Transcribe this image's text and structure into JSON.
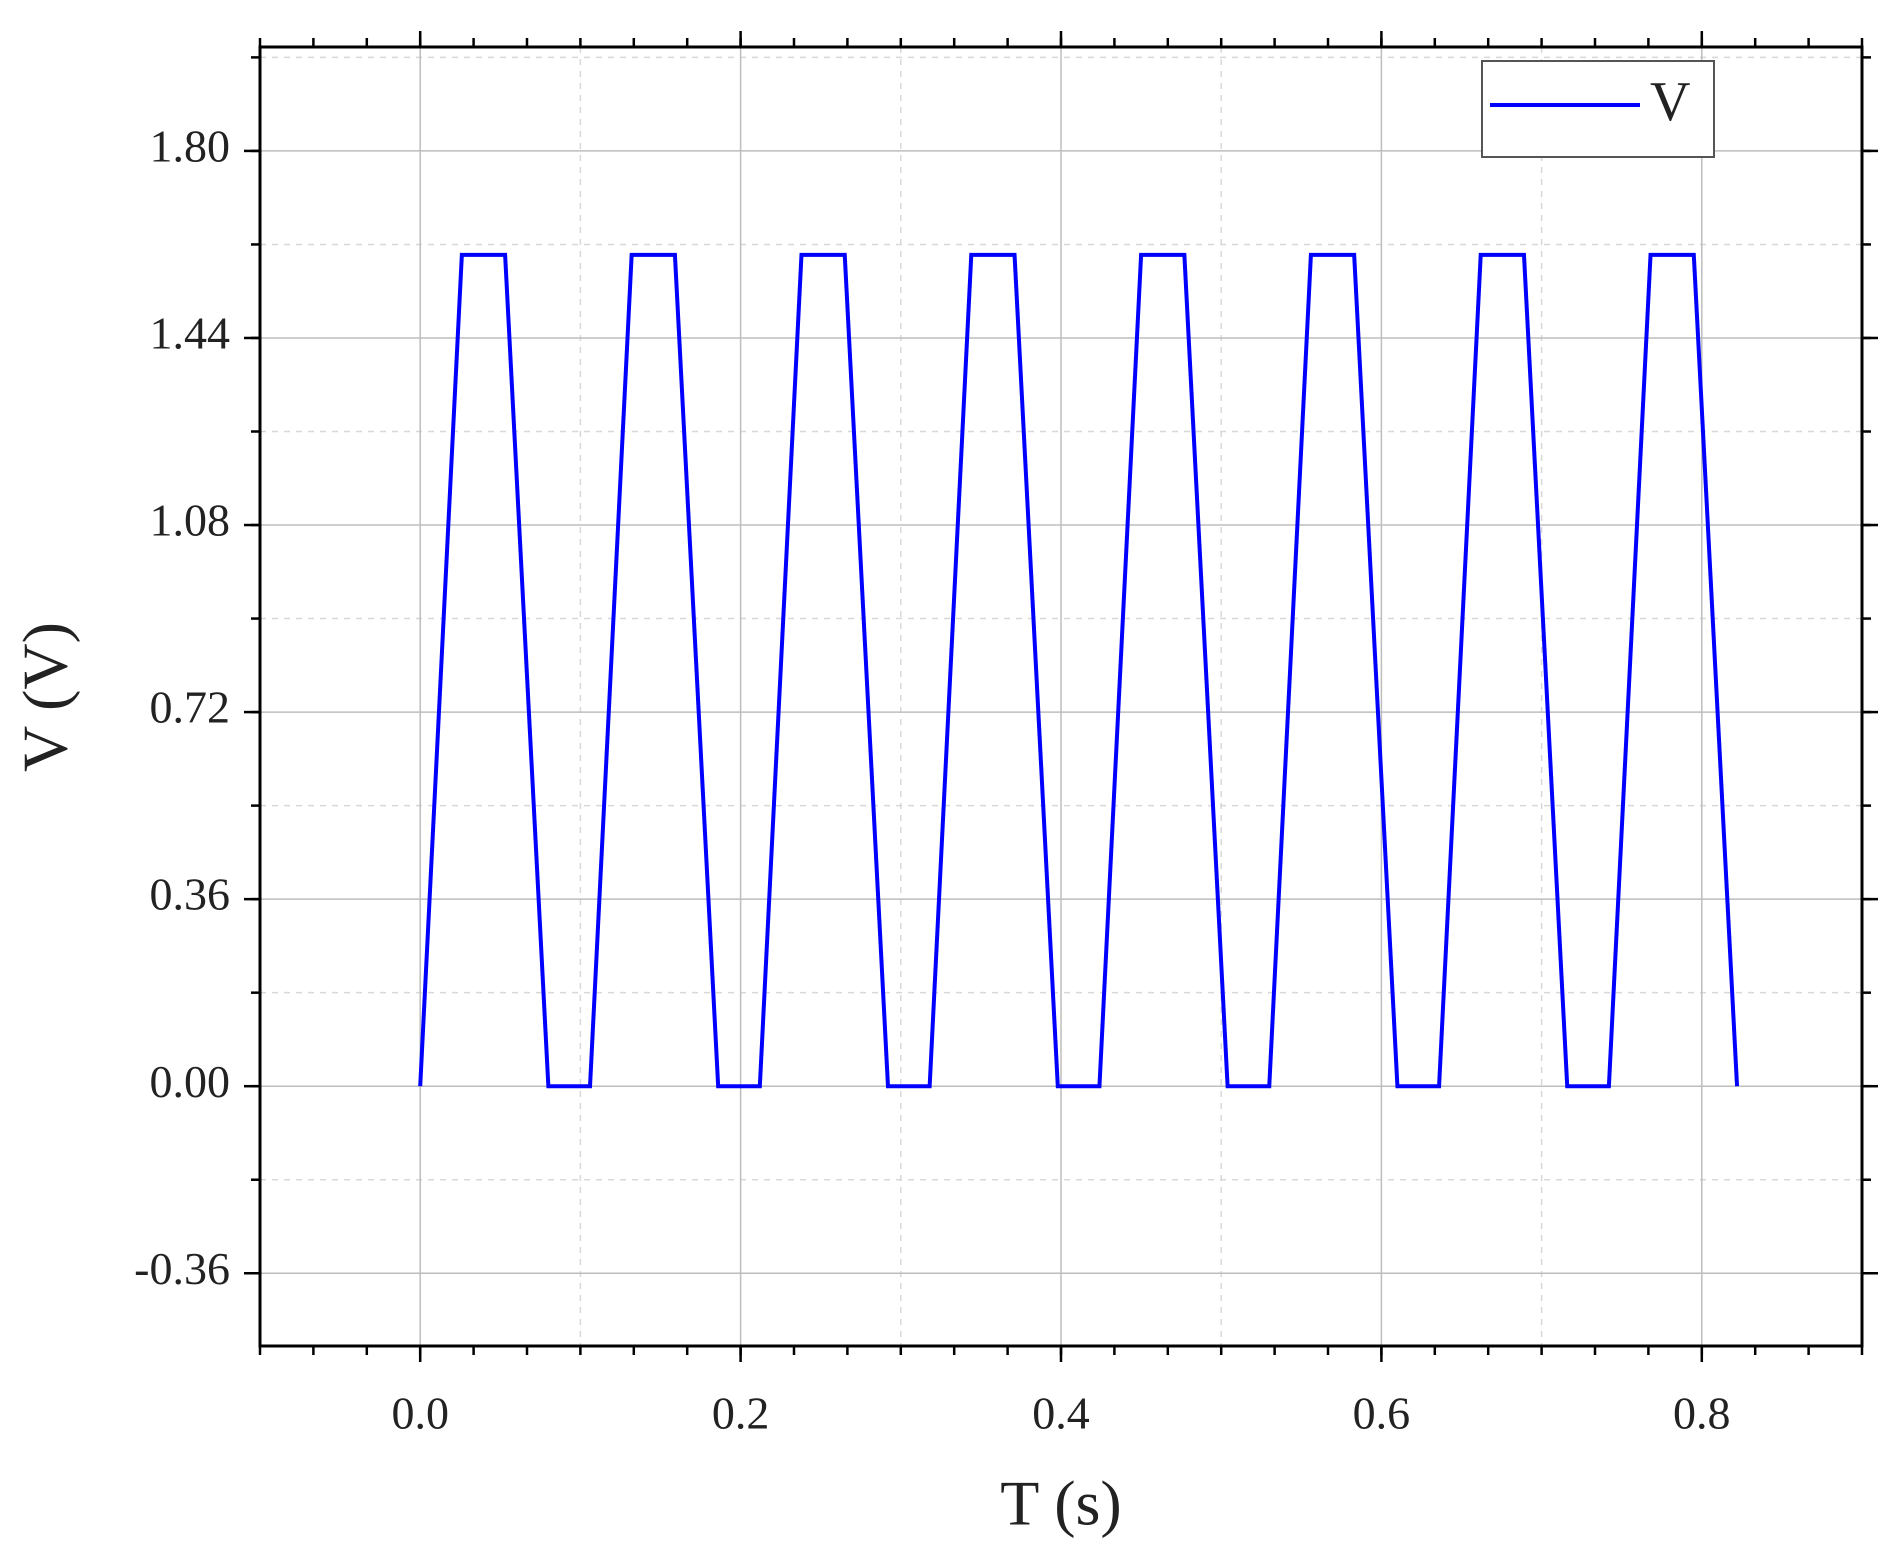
{
  "chart_data": {
    "type": "line",
    "xlabel": "T (s)",
    "ylabel": "V (V)",
    "x": [
      0,
      0.026,
      0.053,
      0.08,
      0.106,
      0.132,
      0.159,
      0.186,
      0.212,
      0.238,
      0.265,
      0.292,
      0.318,
      0.344,
      0.371,
      0.398,
      0.424,
      0.45,
      0.477,
      0.504,
      0.53,
      0.556,
      0.583,
      0.61,
      0.636,
      0.662,
      0.689,
      0.716,
      0.742,
      0.768,
      0.795,
      0.822
    ],
    "series": [
      {
        "name": "V",
        "color": "#0000ff",
        "values": [
          0,
          1.6,
          1.6,
          0,
          0,
          1.6,
          1.6,
          0,
          0,
          1.6,
          1.6,
          0,
          0,
          1.6,
          1.6,
          0,
          0,
          1.6,
          1.6,
          0,
          0,
          1.6,
          1.6,
          0,
          0,
          1.6,
          1.6,
          0,
          0,
          1.6,
          1.6,
          0
        ]
      }
    ],
    "xlim": [
      -0.1,
      0.9
    ],
    "ylim": [
      -0.5,
      2.0
    ],
    "xticks": [
      {
        "value": 0,
        "label": "0.0"
      },
      0.2,
      0.4,
      0.6,
      0.8
    ],
    "yticks": [
      -0.36,
      {
        "value": 0,
        "label": "0.00"
      },
      0.36,
      0.72,
      1.08,
      1.44,
      {
        "value": 1.8,
        "label": "1.80"
      }
    ],
    "grid": true,
    "legend": "upper right"
  }
}
